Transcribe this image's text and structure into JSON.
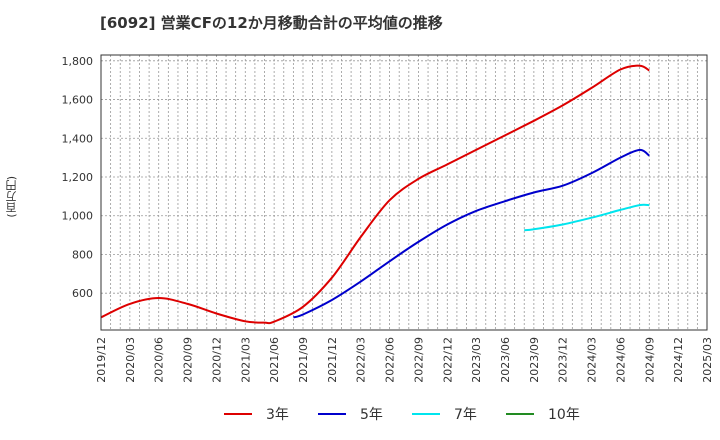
{
  "chart_data": {
    "type": "line",
    "title": "[6092]  営業CFの12か月移動合計の平均値の推移",
    "ylabel": "(百万円)",
    "xlabel": "",
    "ylim": [
      410,
      1830
    ],
    "yticks": [
      600,
      800,
      1000,
      1200,
      1400,
      1600,
      1800
    ],
    "ytick_labels": [
      "600",
      "800",
      "1,000",
      "1,200",
      "1,400",
      "1,600",
      "1,800"
    ],
    "x_range": [
      "2019-12",
      "2025-03"
    ],
    "xtick_labels": [
      "2019/12",
      "2020/03",
      "2020/06",
      "2020/09",
      "2020/12",
      "2021/03",
      "2021/06",
      "2021/09",
      "2021/12",
      "2022/03",
      "2022/06",
      "2022/09",
      "2022/12",
      "2023/03",
      "2023/06",
      "2023/09",
      "2023/12",
      "2024/03",
      "2024/06",
      "2024/09",
      "2024/12",
      "2025/03"
    ],
    "grid": true,
    "legend_position": "bottom",
    "series": [
      {
        "name": "3年",
        "color": "#dd0000",
        "x": [
          "2019-12",
          "2020-03",
          "2020-06",
          "2020-09",
          "2020-12",
          "2021-03",
          "2021-05",
          "2021-06",
          "2021-09",
          "2021-12",
          "2022-03",
          "2022-06",
          "2022-09",
          "2022-12",
          "2023-03",
          "2023-06",
          "2023-09",
          "2023-12",
          "2024-03",
          "2024-06",
          "2024-08",
          "2024-09"
        ],
        "values": [
          475,
          545,
          575,
          545,
          495,
          455,
          448,
          453,
          530,
          680,
          890,
          1080,
          1190,
          1265,
          1340,
          1415,
          1490,
          1570,
          1660,
          1755,
          1775,
          1750
        ]
      },
      {
        "name": "5年",
        "color": "#0000cc",
        "x": [
          "2021-08",
          "2021-09",
          "2021-12",
          "2022-03",
          "2022-06",
          "2022-09",
          "2022-12",
          "2023-03",
          "2023-06",
          "2023-09",
          "2023-12",
          "2024-03",
          "2024-06",
          "2024-08",
          "2024-09"
        ],
        "values": [
          475,
          490,
          565,
          660,
          765,
          865,
          955,
          1025,
          1075,
          1120,
          1155,
          1220,
          1300,
          1340,
          1310
        ]
      },
      {
        "name": "7年",
        "color": "#00e5ee",
        "x": [
          "2023-08",
          "2023-09",
          "2023-12",
          "2024-03",
          "2024-06",
          "2024-08",
          "2024-09"
        ],
        "values": [
          925,
          930,
          955,
          990,
          1030,
          1055,
          1055
        ]
      },
      {
        "name": "10年",
        "color": "#228b22",
        "x": [],
        "values": []
      }
    ]
  }
}
